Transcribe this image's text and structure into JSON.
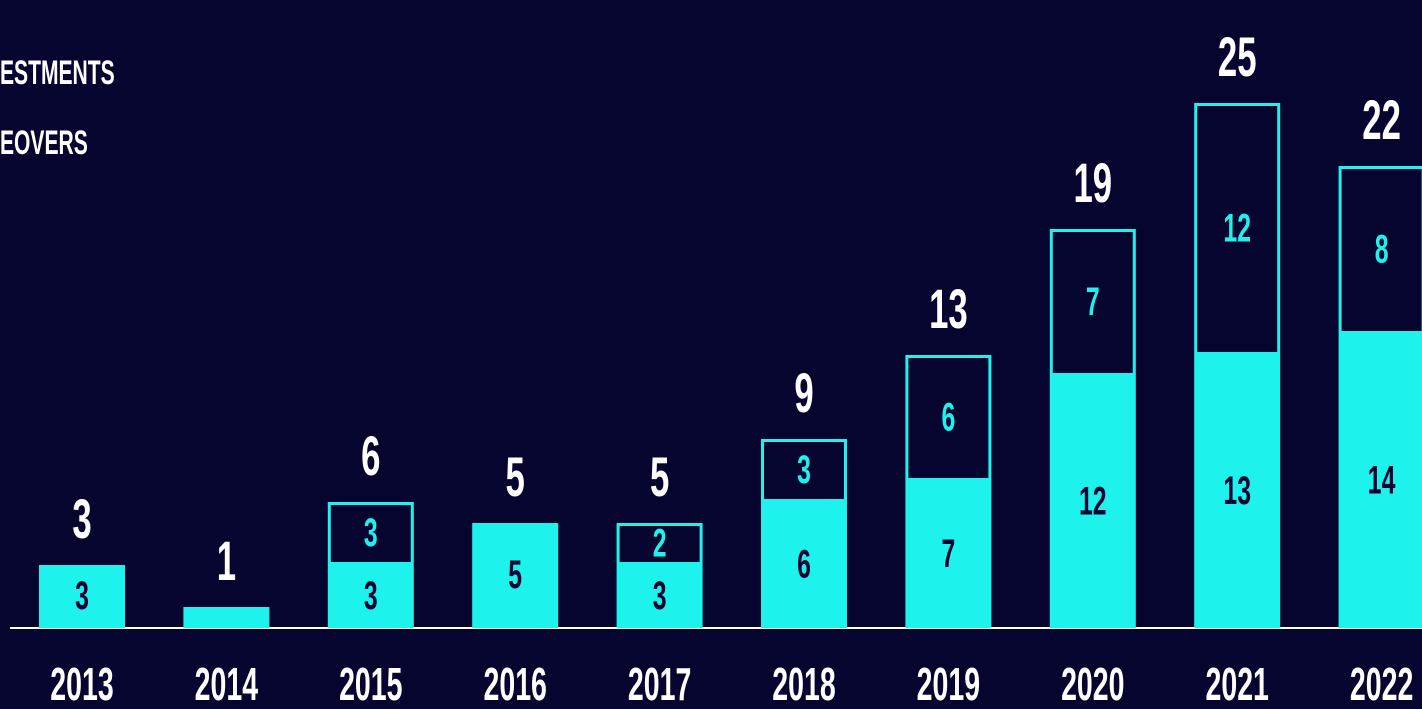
{
  "chart_data": {
    "type": "bar",
    "stacked": true,
    "categories": [
      "2013",
      "2014",
      "2015",
      "2016",
      "2017",
      "2018",
      "2019",
      "2020",
      "2021",
      "2022"
    ],
    "series": [
      {
        "name": "ESTMENTS",
        "color": "#1ef2ec",
        "values": [
          3,
          1,
          3,
          5,
          3,
          6,
          7,
          12,
          13,
          14
        ]
      },
      {
        "name": "EOVERS",
        "color": "#1ef2ec",
        "values": [
          null,
          null,
          3,
          null,
          2,
          3,
          6,
          7,
          12,
          8
        ]
      }
    ],
    "totals": [
      3,
      1,
      6,
      5,
      5,
      9,
      13,
      19,
      25,
      22
    ],
    "ylim": [
      0,
      25
    ]
  }
}
